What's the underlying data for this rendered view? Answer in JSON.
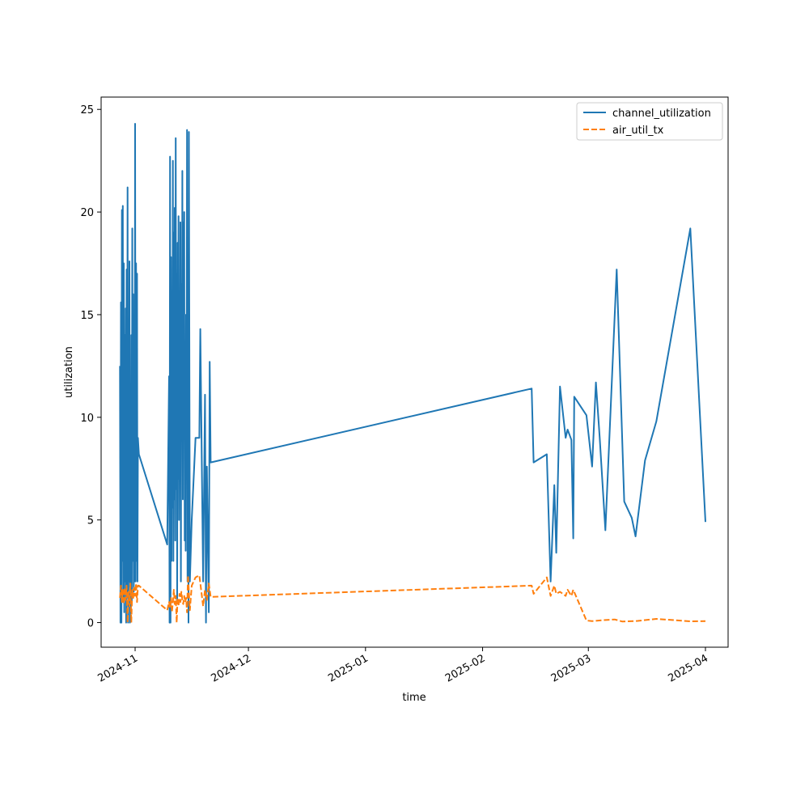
{
  "chart_data": {
    "type": "line",
    "title": "",
    "xlabel": "time",
    "ylabel": "utilization",
    "x_axis_type": "date",
    "xlim": [
      "2024-10-23",
      "2025-04-07"
    ],
    "ylim": [
      -1.2,
      25.6
    ],
    "x_ticks": [
      {
        "value": "2024-11-01",
        "label": "2024-11"
      },
      {
        "value": "2024-12-01",
        "label": "2024-12"
      },
      {
        "value": "2025-01-01",
        "label": "2025-01"
      },
      {
        "value": "2025-02-01",
        "label": "2025-02"
      },
      {
        "value": "2025-03-01",
        "label": "2025-03"
      },
      {
        "value": "2025-04-01",
        "label": "2025-04"
      }
    ],
    "y_ticks": [
      0,
      5,
      10,
      15,
      20,
      25
    ],
    "grid": false,
    "legend_position": "top-right",
    "series": [
      {
        "name": "channel_utilization",
        "color": "#1f77b4",
        "dash": "solid",
        "points": [
          [
            "2024-10-28T00:00",
            12.5
          ],
          [
            "2024-10-28T03:00",
            0.0
          ],
          [
            "2024-10-28T06:00",
            15.6
          ],
          [
            "2024-10-28T09:00",
            0.0
          ],
          [
            "2024-10-28T12:00",
            20.1
          ],
          [
            "2024-10-28T15:00",
            3.0
          ],
          [
            "2024-10-28T18:00",
            20.3
          ],
          [
            "2024-10-28T21:00",
            1.0
          ],
          [
            "2024-10-29T00:00",
            17.5
          ],
          [
            "2024-10-29T03:00",
            0.5
          ],
          [
            "2024-10-29T06:00",
            14.0
          ],
          [
            "2024-10-29T09:00",
            2.0
          ],
          [
            "2024-10-29T12:00",
            15.3
          ],
          [
            "2024-10-29T15:00",
            0.0
          ],
          [
            "2024-10-29T18:00",
            17.2
          ],
          [
            "2024-10-29T21:00",
            1.5
          ],
          [
            "2024-10-30T00:00",
            21.2
          ],
          [
            "2024-10-30T03:00",
            0.0
          ],
          [
            "2024-10-30T06:00",
            12.5
          ],
          [
            "2024-10-30T09:00",
            2.0
          ],
          [
            "2024-10-30T12:00",
            17.6
          ],
          [
            "2024-10-30T15:00",
            0.0
          ],
          [
            "2024-10-30T18:00",
            11.0
          ],
          [
            "2024-10-30T21:00",
            0.5
          ],
          [
            "2024-10-31T00:00",
            14.0
          ],
          [
            "2024-10-31T03:00",
            1.0
          ],
          [
            "2024-10-31T06:00",
            19.2
          ],
          [
            "2024-10-31T09:00",
            3.0
          ],
          [
            "2024-10-31T12:00",
            16.0
          ],
          [
            "2024-10-31T15:00",
            1.5
          ],
          [
            "2024-10-31T18:00",
            8.0
          ],
          [
            "2024-10-31T21:00",
            2.0
          ],
          [
            "2024-11-01T00:00",
            24.3
          ],
          [
            "2024-11-01T03:00",
            2.0
          ],
          [
            "2024-11-01T06:00",
            17.5
          ],
          [
            "2024-11-01T09:00",
            3.0
          ],
          [
            "2024-11-01T12:00",
            17.0
          ],
          [
            "2024-11-01T15:00",
            2.0
          ],
          [
            "2024-11-01T18:00",
            9.0
          ],
          [
            "2024-11-02T00:00",
            8.2
          ],
          [
            "2024-11-09T12:00",
            3.8
          ],
          [
            "2024-11-10T00:00",
            12.0
          ],
          [
            "2024-11-10T03:00",
            0.0
          ],
          [
            "2024-11-10T06:00",
            22.7
          ],
          [
            "2024-11-10T09:00",
            0.0
          ],
          [
            "2024-11-10T12:00",
            17.8
          ],
          [
            "2024-11-10T15:00",
            3.0
          ],
          [
            "2024-11-10T18:00",
            15.0
          ],
          [
            "2024-11-10T21:00",
            5.6
          ],
          [
            "2024-11-11T00:00",
            22.5
          ],
          [
            "2024-11-11T03:00",
            3.0
          ],
          [
            "2024-11-11T06:00",
            19.0
          ],
          [
            "2024-11-11T09:00",
            6.0
          ],
          [
            "2024-11-11T12:00",
            20.2
          ],
          [
            "2024-11-11T15:00",
            4.0
          ],
          [
            "2024-11-11T18:00",
            23.6
          ],
          [
            "2024-11-11T21:00",
            6.5
          ],
          [
            "2024-11-12T00:00",
            17.0
          ],
          [
            "2024-11-12T03:00",
            1.0
          ],
          [
            "2024-11-12T06:00",
            18.5
          ],
          [
            "2024-11-12T09:00",
            7.0
          ],
          [
            "2024-11-12T12:00",
            19.8
          ],
          [
            "2024-11-12T15:00",
            5.0
          ],
          [
            "2024-11-12T18:00",
            14.0
          ],
          [
            "2024-11-12T21:00",
            8.0
          ],
          [
            "2024-11-13T00:00",
            19.5
          ],
          [
            "2024-11-13T03:00",
            2.0
          ],
          [
            "2024-11-13T06:00",
            16.5
          ],
          [
            "2024-11-13T09:00",
            9.0
          ],
          [
            "2024-11-13T12:00",
            22.0
          ],
          [
            "2024-11-13T15:00",
            6.0
          ],
          [
            "2024-11-13T18:00",
            19.5
          ],
          [
            "2024-11-13T21:00",
            10.0
          ],
          [
            "2024-11-14T00:00",
            20.0
          ],
          [
            "2024-11-14T03:00",
            4.0
          ],
          [
            "2024-11-14T06:00",
            13.0
          ],
          [
            "2024-11-14T09:00",
            3.5
          ],
          [
            "2024-11-14T12:00",
            15.0
          ],
          [
            "2024-11-14T15:00",
            7.0
          ],
          [
            "2024-11-14T18:00",
            24.0
          ],
          [
            "2024-11-14T21:00",
            2.0
          ],
          [
            "2024-11-15T00:00",
            17.5
          ],
          [
            "2024-11-15T03:00",
            0.0
          ],
          [
            "2024-11-15T06:00",
            23.9
          ],
          [
            "2024-11-15T12:00",
            2.0
          ],
          [
            "2024-11-16T00:00",
            5.0
          ],
          [
            "2024-11-17T00:00",
            9.0
          ],
          [
            "2024-11-18T00:00",
            9.0
          ],
          [
            "2024-11-18T06:00",
            14.3
          ],
          [
            "2024-11-19T00:00",
            2.0
          ],
          [
            "2024-11-19T12:00",
            11.1
          ],
          [
            "2024-11-19T18:00",
            0.0
          ],
          [
            "2024-11-20T00:00",
            7.6
          ],
          [
            "2024-11-20T12:00",
            0.5
          ],
          [
            "2024-11-20T18:00",
            12.7
          ],
          [
            "2024-11-21T00:00",
            7.8
          ],
          [
            "2025-02-14T00:00",
            11.4
          ],
          [
            "2025-02-14T12:00",
            7.8
          ],
          [
            "2025-02-18T00:00",
            8.2
          ],
          [
            "2025-02-19T00:00",
            2.0
          ],
          [
            "2025-02-20T00:00",
            6.7
          ],
          [
            "2025-02-20T12:00",
            3.4
          ],
          [
            "2025-02-21T12:00",
            11.5
          ],
          [
            "2025-02-23T00:00",
            9.0
          ],
          [
            "2025-02-23T12:00",
            9.4
          ],
          [
            "2025-02-24T12:00",
            8.9
          ],
          [
            "2025-02-25T00:00",
            4.1
          ],
          [
            "2025-02-25T06:00",
            11.0
          ],
          [
            "2025-02-28T12:00",
            10.1
          ],
          [
            "2025-03-02T00:00",
            7.6
          ],
          [
            "2025-03-03T00:00",
            11.7
          ],
          [
            "2025-03-04T00:00",
            9.0
          ],
          [
            "2025-03-05T12:00",
            4.5
          ],
          [
            "2025-03-08T12:00",
            17.2
          ],
          [
            "2025-03-10T12:00",
            5.9
          ],
          [
            "2025-03-12T12:00",
            5.1
          ],
          [
            "2025-03-13T12:00",
            4.2
          ],
          [
            "2025-03-16T00:00",
            7.9
          ],
          [
            "2025-03-19T00:00",
            9.8
          ],
          [
            "2025-03-28T00:00",
            19.2
          ],
          [
            "2025-04-01T00:00",
            4.9
          ]
        ]
      },
      {
        "name": "air_util_tx",
        "color": "#ff7f0e",
        "dash": "dashed",
        "points": [
          [
            "2024-10-28T00:00",
            1.2
          ],
          [
            "2024-10-28T06:00",
            1.8
          ],
          [
            "2024-10-28T12:00",
            1.0
          ],
          [
            "2024-10-28T18:00",
            1.6
          ],
          [
            "2024-10-29T00:00",
            0.9
          ],
          [
            "2024-10-29T06:00",
            1.7
          ],
          [
            "2024-10-29T12:00",
            1.1
          ],
          [
            "2024-10-29T18:00",
            1.8
          ],
          [
            "2024-10-30T00:00",
            0.0
          ],
          [
            "2024-10-30T06:00",
            1.5
          ],
          [
            "2024-10-30T12:00",
            0.8
          ],
          [
            "2024-10-30T18:00",
            1.9
          ],
          [
            "2024-10-31T00:00",
            0.0
          ],
          [
            "2024-10-31T06:00",
            1.6
          ],
          [
            "2024-10-31T12:00",
            1.2
          ],
          [
            "2024-10-31T18:00",
            1.7
          ],
          [
            "2024-11-01T00:00",
            1.3
          ],
          [
            "2024-11-01T06:00",
            1.9
          ],
          [
            "2024-11-01T12:00",
            1.0
          ],
          [
            "2024-11-01T18:00",
            1.8
          ],
          [
            "2024-11-02T00:00",
            1.8
          ],
          [
            "2024-11-09T12:00",
            0.6
          ],
          [
            "2024-11-10T00:00",
            1.0
          ],
          [
            "2024-11-10T06:00",
            0.7
          ],
          [
            "2024-11-10T12:00",
            1.2
          ],
          [
            "2024-11-10T18:00",
            0.5
          ],
          [
            "2024-11-11T00:00",
            1.0
          ],
          [
            "2024-11-11T06:00",
            1.6
          ],
          [
            "2024-11-11T12:00",
            0.9
          ],
          [
            "2024-11-11T18:00",
            1.3
          ],
          [
            "2024-11-12T00:00",
            0.0
          ],
          [
            "2024-11-12T06:00",
            1.2
          ],
          [
            "2024-11-12T12:00",
            0.8
          ],
          [
            "2024-11-12T18:00",
            1.4
          ],
          [
            "2024-11-13T00:00",
            1.0
          ],
          [
            "2024-11-13T06:00",
            1.5
          ],
          [
            "2024-11-13T12:00",
            1.1
          ],
          [
            "2024-11-13T18:00",
            0.9
          ],
          [
            "2024-11-14T00:00",
            1.3
          ],
          [
            "2024-11-14T06:00",
            1.0
          ],
          [
            "2024-11-14T12:00",
            1.2
          ],
          [
            "2024-11-14T18:00",
            0.5
          ],
          [
            "2024-11-15T00:00",
            2.3
          ],
          [
            "2024-11-15T12:00",
            0.6
          ],
          [
            "2024-11-16T00:00",
            1.8
          ],
          [
            "2024-11-17T00:00",
            2.2
          ],
          [
            "2024-11-18T00:00",
            2.3
          ],
          [
            "2024-11-19T00:00",
            0.8
          ],
          [
            "2024-11-19T12:00",
            1.6
          ],
          [
            "2024-11-20T00:00",
            1.1
          ],
          [
            "2024-11-20T12:00",
            1.9
          ],
          [
            "2024-11-21T00:00",
            1.25
          ],
          [
            "2025-02-14T00:00",
            1.8
          ],
          [
            "2025-02-14T12:00",
            1.4
          ],
          [
            "2025-02-18T00:00",
            2.2
          ],
          [
            "2025-02-19T00:00",
            1.3
          ],
          [
            "2025-02-20T00:00",
            1.8
          ],
          [
            "2025-02-20T12:00",
            1.4
          ],
          [
            "2025-02-21T12:00",
            1.5
          ],
          [
            "2025-02-23T00:00",
            1.3
          ],
          [
            "2025-02-23T12:00",
            1.6
          ],
          [
            "2025-02-24T12:00",
            1.3
          ],
          [
            "2025-02-25T00:00",
            1.6
          ],
          [
            "2025-02-28T12:00",
            0.1
          ],
          [
            "2025-03-02T00:00",
            0.07
          ],
          [
            "2025-03-05T00:00",
            0.12
          ],
          [
            "2025-03-08T00:00",
            0.15
          ],
          [
            "2025-03-10T00:00",
            0.05
          ],
          [
            "2025-03-14T00:00",
            0.08
          ],
          [
            "2025-03-19T00:00",
            0.18
          ],
          [
            "2025-03-28T00:00",
            0.06
          ],
          [
            "2025-04-01T00:00",
            0.07
          ]
        ]
      }
    ]
  }
}
